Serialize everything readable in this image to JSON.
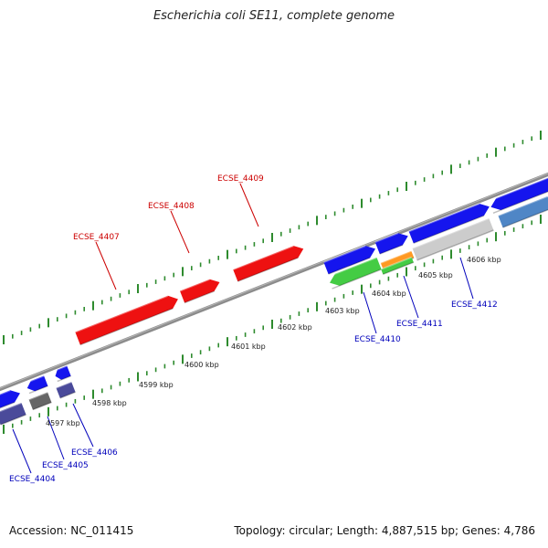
{
  "title": "Escherichia coli SE11, complete genome",
  "footer": {
    "accession": "Accession: NC_011415",
    "topology": "Topology: circular; Length: 4,887,515 bp; Genes: 4,786"
  },
  "colors": {
    "backbone": "#8a8a8a",
    "tick": "#2e8b2e",
    "red": "#ee1111",
    "blue": "#1515ee",
    "navy": "#4a4a9a",
    "gray": "#666666",
    "green": "#44cc44",
    "orange": "#ff9922",
    "silver": "#cccccc",
    "steel": "#4f86c6",
    "label_red": "#cc0000",
    "label_blue": "#0000bb"
  },
  "kbp_labels": [
    "4597 kbp",
    "4598 kbp",
    "4599 kbp",
    "4600 kbp",
    "4601 kbp",
    "4602 kbp",
    "4603 kbp",
    "4604 kbp",
    "4605 kbp",
    "4606 kbp"
  ],
  "gene_labels": [
    {
      "text": "ECSE_4407",
      "strand": "top"
    },
    {
      "text": "ECSE_4408",
      "strand": "top"
    },
    {
      "text": "ECSE_4409",
      "strand": "top"
    },
    {
      "text": "ECSE_4404",
      "strand": "bottom"
    },
    {
      "text": "ECSE_4405",
      "strand": "bottom"
    },
    {
      "text": "ECSE_4406",
      "strand": "bottom"
    },
    {
      "text": "ECSE_4410",
      "strand": "bottom"
    },
    {
      "text": "ECSE_4411",
      "strand": "bottom"
    },
    {
      "text": "ECSE_4412",
      "strand": "bottom"
    }
  ]
}
